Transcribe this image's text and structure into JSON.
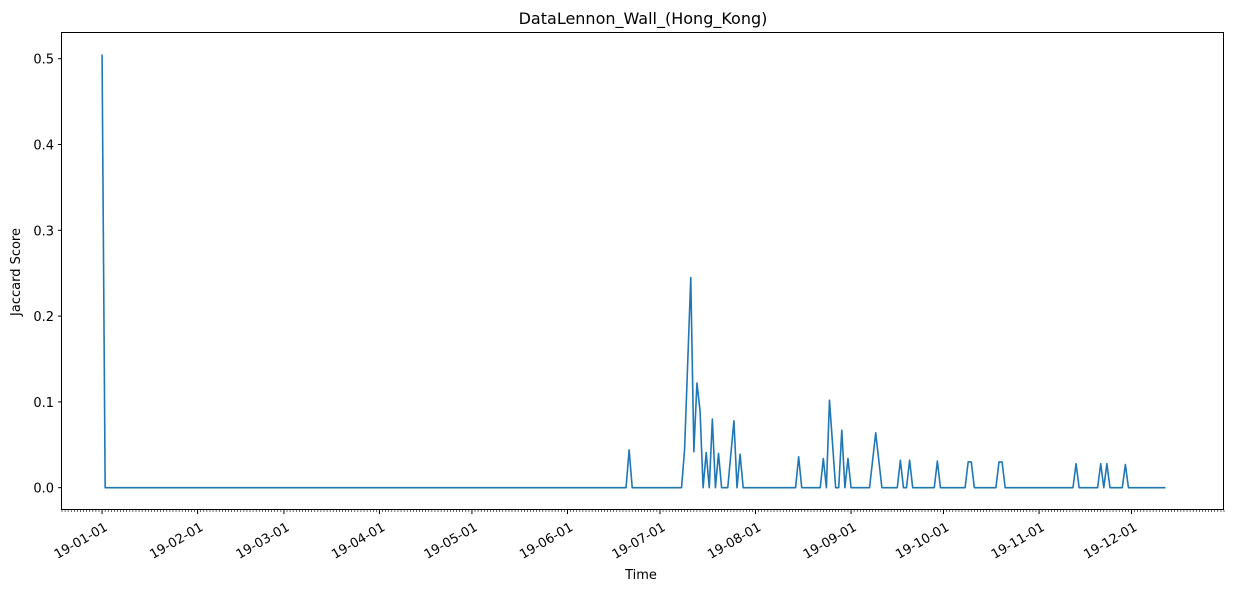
{
  "chart_data": {
    "type": "line",
    "title": "DataLennon_Wall_(Hong_Kong)",
    "xlabel": "Time",
    "ylabel": "Jaccard Score",
    "x_tick_labels": [
      "19-01-01",
      "19-02-01",
      "19-03-01",
      "19-04-01",
      "19-05-01",
      "19-06-01",
      "19-07-01",
      "19-08-01",
      "19-09-01",
      "19-10-01",
      "19-11-01",
      "19-12-01"
    ],
    "y_tick_labels": [
      "0.0",
      "0.1",
      "0.2",
      "0.3",
      "0.4",
      "0.5"
    ],
    "xlim": [
      "2018-12-19",
      "2019-12-31"
    ],
    "ylim": [
      -0.026,
      0.53
    ],
    "grid": false,
    "series": [
      {
        "color": "#1f77b4",
        "points": [
          [
            "2019-01-01",
            0.505
          ],
          [
            "2019-01-02",
            0.0
          ],
          [
            "2019-06-20",
            0.0
          ],
          [
            "2019-06-21",
            0.044
          ],
          [
            "2019-06-22",
            0.0
          ],
          [
            "2019-07-08",
            0.0
          ],
          [
            "2019-07-09",
            0.045
          ],
          [
            "2019-07-11",
            0.245
          ],
          [
            "2019-07-12",
            0.042
          ],
          [
            "2019-07-13",
            0.122
          ],
          [
            "2019-07-14",
            0.09
          ],
          [
            "2019-07-15",
            0.0
          ],
          [
            "2019-07-16",
            0.041
          ],
          [
            "2019-07-17",
            0.0
          ],
          [
            "2019-07-18",
            0.08
          ],
          [
            "2019-07-19",
            0.0
          ],
          [
            "2019-07-20",
            0.04
          ],
          [
            "2019-07-21",
            0.0
          ],
          [
            "2019-07-23",
            0.0
          ],
          [
            "2019-07-25",
            0.078
          ],
          [
            "2019-07-26",
            0.0
          ],
          [
            "2019-07-27",
            0.039
          ],
          [
            "2019-07-28",
            0.0
          ],
          [
            "2019-08-14",
            0.0
          ],
          [
            "2019-08-15",
            0.036
          ],
          [
            "2019-08-16",
            0.0
          ],
          [
            "2019-08-22",
            0.0
          ],
          [
            "2019-08-23",
            0.034
          ],
          [
            "2019-08-24",
            0.0
          ],
          [
            "2019-08-25",
            0.102
          ],
          [
            "2019-08-27",
            0.0
          ],
          [
            "2019-08-28",
            0.0
          ],
          [
            "2019-08-29",
            0.067
          ],
          [
            "2019-08-30",
            0.0
          ],
          [
            "2019-08-31",
            0.034
          ],
          [
            "2019-09-01",
            0.0
          ],
          [
            "2019-09-07",
            0.0
          ],
          [
            "2019-09-09",
            0.064
          ],
          [
            "2019-09-11",
            0.0
          ],
          [
            "2019-09-16",
            0.0
          ],
          [
            "2019-09-17",
            0.032
          ],
          [
            "2019-09-18",
            0.0
          ],
          [
            "2019-09-19",
            0.0
          ],
          [
            "2019-09-20",
            0.032
          ],
          [
            "2019-09-21",
            0.0
          ],
          [
            "2019-09-28",
            0.0
          ],
          [
            "2019-09-29",
            0.031
          ],
          [
            "2019-09-30",
            0.0
          ],
          [
            "2019-10-08",
            0.0
          ],
          [
            "2019-10-09",
            0.03
          ],
          [
            "2019-10-10",
            0.03
          ],
          [
            "2019-10-11",
            0.0
          ],
          [
            "2019-10-18",
            0.0
          ],
          [
            "2019-10-19",
            0.03
          ],
          [
            "2019-10-20",
            0.03
          ],
          [
            "2019-10-21",
            0.0
          ],
          [
            "2019-11-12",
            0.0
          ],
          [
            "2019-11-13",
            0.028
          ],
          [
            "2019-11-14",
            0.0
          ],
          [
            "2019-11-20",
            0.0
          ],
          [
            "2019-11-21",
            0.028
          ],
          [
            "2019-11-22",
            0.0
          ],
          [
            "2019-11-23",
            0.028
          ],
          [
            "2019-11-24",
            0.0
          ],
          [
            "2019-11-28",
            0.0
          ],
          [
            "2019-11-29",
            0.027
          ],
          [
            "2019-11-30",
            0.0
          ],
          [
            "2019-12-12",
            0.0
          ]
        ]
      }
    ]
  }
}
